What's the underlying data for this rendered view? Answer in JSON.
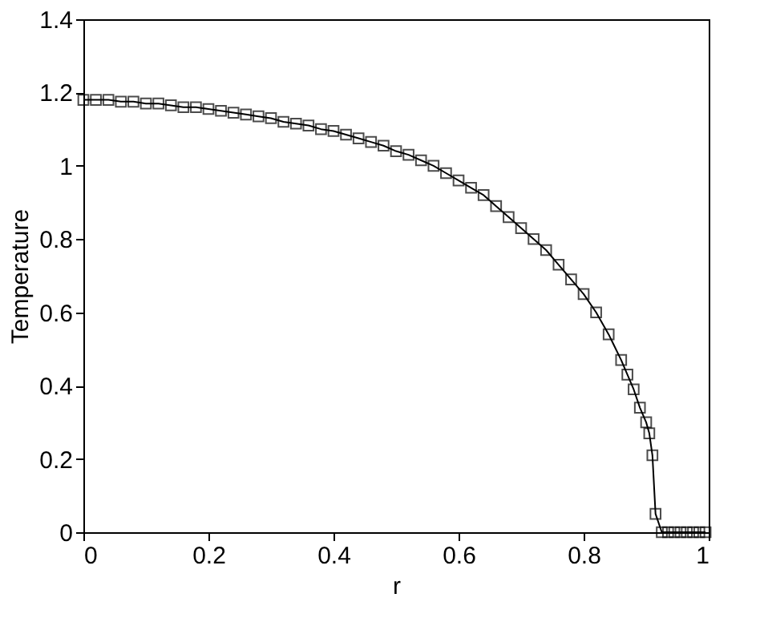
{
  "chart_data": {
    "type": "line",
    "xlabel": "r",
    "ylabel": "Temperature",
    "marker": "square",
    "line_style": "solid",
    "grid": false,
    "xlim": [
      0,
      1
    ],
    "xticks": [
      0,
      0.2,
      0.4,
      0.6,
      0.8,
      1
    ],
    "ylim": [
      0,
      1.4
    ],
    "yticks": [
      0,
      0.2,
      0.4,
      0.6,
      0.8,
      1,
      1.2,
      1.4
    ],
    "series": [
      {
        "color": "#000000",
        "x": [
          0,
          0.02,
          0.04,
          0.06,
          0.08,
          0.1,
          0.12,
          0.14,
          0.16,
          0.18,
          0.2,
          0.22,
          0.24,
          0.26,
          0.28,
          0.3,
          0.32,
          0.34,
          0.36,
          0.38,
          0.4,
          0.42,
          0.44,
          0.46,
          0.48,
          0.5,
          0.52,
          0.54,
          0.56,
          0.58,
          0.6,
          0.62,
          0.64,
          0.66,
          0.68,
          0.7,
          0.72,
          0.74,
          0.76,
          0.78,
          0.8,
          0.82,
          0.84,
          0.86,
          0.87,
          0.88,
          0.89,
          0.9,
          0.905,
          0.91,
          0.915,
          0.925,
          0.935,
          0.945,
          0.955,
          0.965,
          0.975,
          0.985,
          0.995
        ],
        "values": [
          1.18,
          1.18,
          1.18,
          1.175,
          1.175,
          1.17,
          1.17,
          1.165,
          1.16,
          1.16,
          1.155,
          1.15,
          1.145,
          1.14,
          1.135,
          1.13,
          1.12,
          1.115,
          1.11,
          1.1,
          1.095,
          1.085,
          1.075,
          1.065,
          1.055,
          1.04,
          1.03,
          1.015,
          1.0,
          0.98,
          0.96,
          0.94,
          0.92,
          0.89,
          0.86,
          0.83,
          0.8,
          0.77,
          0.73,
          0.69,
          0.65,
          0.6,
          0.54,
          0.47,
          0.43,
          0.39,
          0.34,
          0.3,
          0.27,
          0.21,
          0.05,
          0,
          0,
          0,
          0,
          0,
          0,
          0,
          0
        ]
      }
    ]
  }
}
